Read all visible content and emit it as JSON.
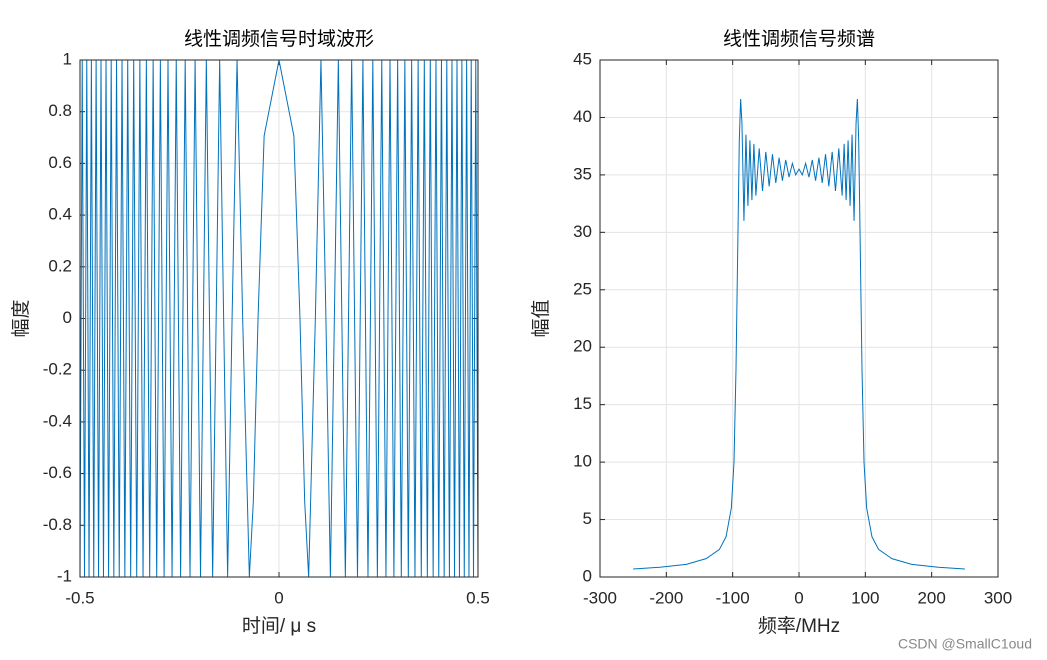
{
  "chart_data": [
    {
      "type": "line",
      "title": "线性调频信号时域波形",
      "xlabel": "时间/ μ s",
      "ylabel": "幅度",
      "color": "#0072bd",
      "x": [
        -0.5,
        -0.4944,
        -0.4887,
        -0.483,
        -0.4773,
        -0.4714,
        -0.4655,
        -0.4595,
        -0.4534,
        -0.4472,
        -0.441,
        -0.4346,
        -0.4282,
        -0.4216,
        -0.415,
        -0.4082,
        -0.4014,
        -0.3944,
        -0.3873,
        -0.3801,
        -0.3727,
        -0.3651,
        -0.3575,
        -0.3496,
        -0.3416,
        -0.3333,
        -0.3249,
        -0.3162,
        -0.3073,
        -0.2981,
        -0.2887,
        -0.2789,
        -0.2687,
        -0.2582,
        -0.2472,
        -0.2357,
        -0.2236,
        -0.2108,
        -0.1972,
        -0.1826,
        -0.1667,
        -0.1491,
        -0.1291,
        -0.1179,
        -0.1054,
        -0.0913,
        -0.0745,
        -0.0645,
        -0.0527,
        -0.0373,
        0,
        0.0373,
        0.0527,
        0.0645,
        0.0745,
        0.0913,
        0.1054,
        0.1179,
        0.1291,
        0.1491,
        0.1667,
        0.1826,
        0.1972,
        0.2108,
        0.2236,
        0.2357,
        0.2472,
        0.2582,
        0.2687,
        0.2789,
        0.2887,
        0.2981,
        0.3073,
        0.3162,
        0.3249,
        0.3333,
        0.3416,
        0.3496,
        0.3575,
        0.3651,
        0.3727,
        0.3801,
        0.3873,
        0.3944,
        0.4014,
        0.4082,
        0.415,
        0.4216,
        0.4282,
        0.4346,
        0.441,
        0.4472,
        0.4534,
        0.4595,
        0.4655,
        0.4714,
        0.4773,
        0.483,
        0.4887,
        0.4944,
        0.5
      ],
      "values": [
        -1,
        1,
        -1,
        1,
        -1,
        1,
        -1,
        1,
        -1,
        1,
        -1,
        1,
        -1,
        1,
        -1,
        1,
        -1,
        1,
        -1,
        1,
        -1,
        1,
        -1,
        1,
        -1,
        1,
        -1,
        1,
        -1,
        1,
        -1,
        1,
        -1,
        1,
        -1,
        1,
        -1,
        1,
        -1,
        1,
        -1,
        1,
        -1,
        0,
        1,
        0,
        -1,
        -0.707,
        0,
        0.707,
        1,
        0.707,
        0,
        -0.707,
        -1,
        0,
        1,
        0,
        -1,
        1,
        -1,
        1,
        -1,
        1,
        -1,
        1,
        -1,
        1,
        -1,
        1,
        -1,
        1,
        -1,
        1,
        -1,
        1,
        -1,
        1,
        -1,
        1,
        -1,
        1,
        -1,
        1,
        -1,
        1,
        -1,
        1,
        -1,
        1,
        -1,
        1,
        -1,
        1,
        -1,
        1,
        -1,
        1,
        -1,
        1,
        -1
      ],
      "xlim": [
        -0.5,
        0.5
      ],
      "xticks": [
        -0.5,
        0,
        0.5
      ],
      "ylim": [
        -1,
        1
      ],
      "yticks": [
        -1,
        -0.8,
        -0.6,
        -0.4,
        -0.2,
        0,
        0.2,
        0.4,
        0.6,
        0.8,
        1
      ],
      "grid": true
    },
    {
      "type": "line",
      "title": "线性调频信号频谱",
      "xlabel": "频率/MHz",
      "ylabel": "幅值",
      "color": "#0072bd",
      "x": [
        -250,
        -210,
        -170,
        -140,
        -120,
        -110,
        -102,
        -98,
        -95,
        -92,
        -90,
        -88,
        -86,
        -83,
        -80,
        -77,
        -74,
        -71,
        -68,
        -65,
        -60,
        -55,
        -50,
        -45,
        -40,
        -35,
        -30,
        -25,
        -20,
        -15,
        -10,
        -5,
        0,
        5,
        10,
        15,
        20,
        25,
        30,
        35,
        40,
        45,
        50,
        55,
        60,
        65,
        68,
        71,
        74,
        77,
        80,
        83,
        86,
        88,
        90,
        92,
        95,
        98,
        102,
        110,
        120,
        140,
        170,
        210,
        250
      ],
      "values": [
        0.7,
        0.85,
        1.1,
        1.6,
        2.4,
        3.5,
        6,
        10,
        18,
        30,
        38,
        41.6,
        39.5,
        31,
        38.5,
        32.3,
        38,
        32.8,
        37.7,
        33.2,
        37.3,
        33.6,
        37,
        34,
        36.8,
        34.3,
        36.5,
        34.5,
        36.3,
        34.8,
        36,
        35,
        35.5,
        35,
        36,
        34.8,
        36.3,
        34.5,
        36.5,
        34.3,
        36.8,
        34,
        37,
        33.6,
        37.3,
        33.2,
        37.7,
        32.8,
        38,
        32.3,
        38.5,
        31,
        39.5,
        41.6,
        38,
        30,
        18,
        10,
        6,
        3.5,
        2.4,
        1.6,
        1.1,
        0.85,
        0.7
      ],
      "xlim": [
        -300,
        300
      ],
      "xticks": [
        -300,
        -200,
        -100,
        0,
        100,
        200,
        300
      ],
      "ylim": [
        0,
        45
      ],
      "yticks": [
        0,
        5,
        10,
        15,
        20,
        25,
        30,
        35,
        40,
        45
      ],
      "grid": true
    }
  ],
  "watermark": "CSDN @SmallC1oud"
}
